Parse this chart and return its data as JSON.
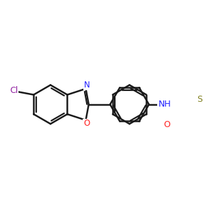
{
  "bg_color": "#ffffff",
  "bond_color": "#1a1a1a",
  "atom_colors": {
    "N": "#2020ff",
    "O": "#ff2020",
    "S": "#808020",
    "Cl": "#9020a0",
    "C": "#1a1a1a"
  },
  "bond_width": 1.8,
  "font_size": 8.5
}
